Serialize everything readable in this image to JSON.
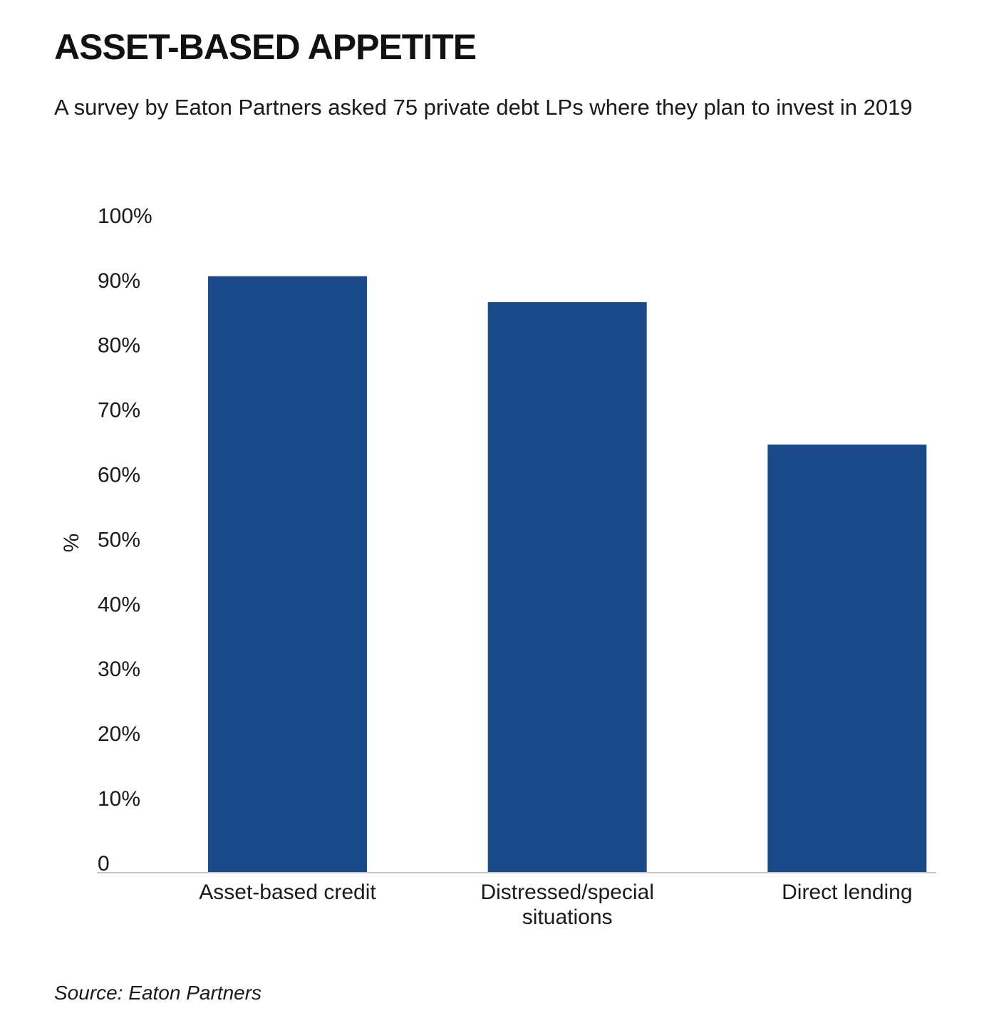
{
  "header": {
    "title": "ASSET-BASED APPETITE",
    "subtitle": "A survey by Eaton Partners asked 75 private debt LPs where they plan to invest in 2019"
  },
  "footer": {
    "source": "Source: Eaton Partners"
  },
  "colors": {
    "bar": "#1b4a8a",
    "axis_line": "#c8c8c8"
  },
  "chart_data": {
    "type": "bar",
    "title": "ASSET-BASED APPETITE",
    "subtitle": "A survey by Eaton Partners asked 75 private debt LPs where they plan to invest in 2019",
    "xlabel": "",
    "ylabel": "%",
    "categories": [
      [
        "Asset-based credit"
      ],
      [
        "Distressed/special",
        "situations"
      ],
      [
        "Direct lending"
      ]
    ],
    "values": [
      92,
      88,
      66
    ],
    "ylim": [
      0,
      100
    ],
    "yticks": [
      0,
      10,
      20,
      30,
      40,
      50,
      60,
      70,
      80,
      90,
      100
    ],
    "ytick_labels": [
      "0",
      "10%",
      "20%",
      "30%",
      "40%",
      "50%",
      "60%",
      "70%",
      "80%",
      "90%",
      "100%"
    ],
    "grid": false,
    "legend": "none"
  }
}
